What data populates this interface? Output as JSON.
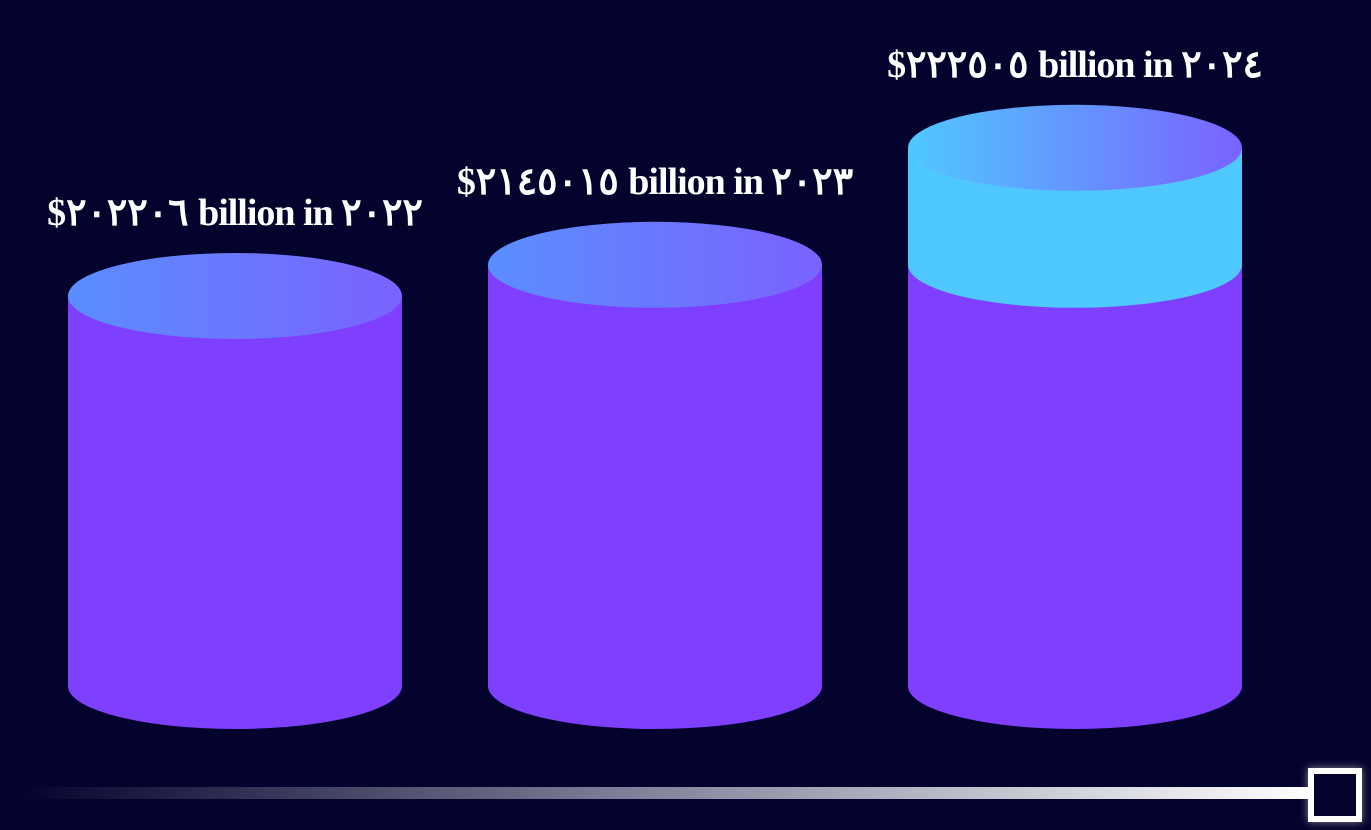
{
  "chart_data": {
    "type": "bar",
    "style": "3d-cylinder",
    "series": [
      {
        "values": [
          {
            "label": "$٢٠٢٢٠٦ billion in ٢٠٢٢",
            "base": 1,
            "highlight": 0
          },
          {
            "label": "$٢١٤٥٠١٥ billion in ٢٠٢٣",
            "base": 1.08,
            "highlight": 0
          },
          {
            "label": "$٢٢٢٥٠٥ billion in ٢٠٢٤",
            "base": 1.08,
            "highlight": 0.3
          }
        ]
      }
    ],
    "legend": "none",
    "grid": false
  },
  "colors": {
    "background": "#03032d",
    "bar_body": "#7f3ffe",
    "bar_top_left": "#5a8eff",
    "bar_top_right": "#7a62ff",
    "highlight_segment": "#4fc8ff",
    "label": "#ffffff"
  },
  "scrollbar": {
    "handle_icon": "square-outline-icon"
  }
}
